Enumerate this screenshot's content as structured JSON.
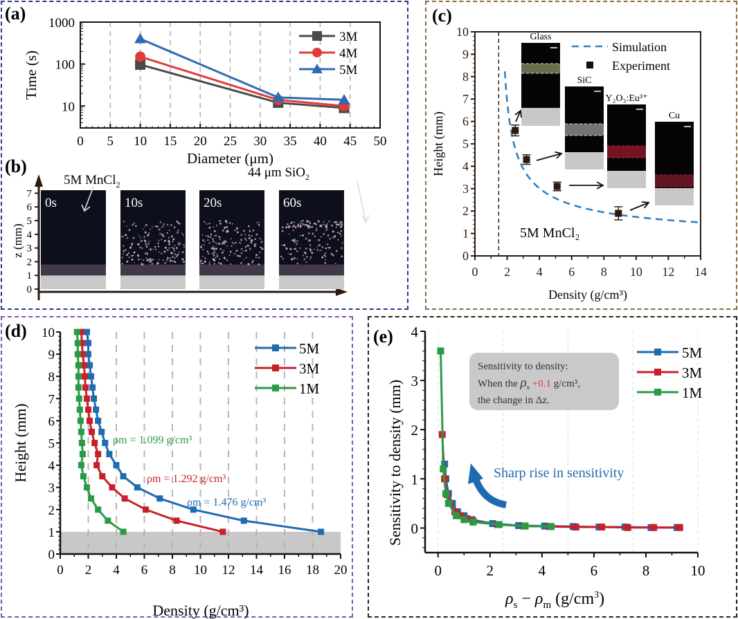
{
  "figure": {
    "panels": {
      "a": {
        "label": "(a)"
      },
      "b": {
        "label": "(b)"
      },
      "c": {
        "label": "(c)"
      },
      "d": {
        "label": "(d)"
      },
      "e": {
        "label": "(e)"
      }
    }
  },
  "chart_data": [
    {
      "id": "a",
      "type": "line",
      "title": "",
      "xlabel": "Diameter (μm)",
      "ylabel": "Time (s)",
      "xlim": [
        0,
        50
      ],
      "ylim": [
        3,
        1000
      ],
      "yscale": "log",
      "xticks": [
        "0",
        "5",
        "10",
        "15",
        "20",
        "25",
        "30",
        "35",
        "40",
        "45",
        "50"
      ],
      "yticks": [
        "10",
        "100",
        "1000"
      ],
      "grid": "vertical dashed",
      "legend_position": "top-right",
      "x": [
        10,
        33,
        44
      ],
      "series": [
        {
          "name": "3M",
          "marker": "square",
          "color": "#4a4a4a",
          "values": [
            97,
            12,
            9
          ]
        },
        {
          "name": "4M",
          "marker": "circle",
          "color": "#e03c3c",
          "values": [
            150,
            14,
            10
          ]
        },
        {
          "name": "5M",
          "marker": "triangle",
          "color": "#2f6bb5",
          "values": [
            400,
            16,
            14
          ]
        }
      ]
    },
    {
      "id": "b",
      "type": "image-sequence",
      "ylabel": "z (mm)",
      "yticks": [
        "0",
        "1",
        "2",
        "3",
        "4",
        "5",
        "6",
        "7"
      ],
      "annotations": {
        "left": "5M MnCl",
        "left_sub": "2",
        "right": "44 μm SiO",
        "right_sub": "2"
      },
      "frames": [
        {
          "time": "0s",
          "particle_top_mm": 1.9
        },
        {
          "time": "10s",
          "particle_top_mm": 5.0
        },
        {
          "time": "20s",
          "particle_top_mm": 5.0
        },
        {
          "time": "60s",
          "particle_top_mm": 5.0
        }
      ],
      "floor_mm": 1
    },
    {
      "id": "c",
      "type": "scatter",
      "xlabel": "Density (g/cm³)",
      "ylabel": "Height (mm)",
      "xlim": [
        0,
        14
      ],
      "ylim": [
        0,
        10
      ],
      "xticks": [
        "0",
        "2",
        "4",
        "6",
        "8",
        "10",
        "12",
        "14"
      ],
      "yticks": [
        "0",
        "1",
        "2",
        "3",
        "4",
        "5",
        "6",
        "7",
        "8",
        "9",
        "10"
      ],
      "legend_position": "top-right",
      "legend": [
        "Simulation",
        "Experiment"
      ],
      "vline_x": 1.476,
      "annotation": "5M MnCl₂",
      "simulation": {
        "name": "Simulation",
        "color": "#2f7fc0",
        "rho_m": 1.476
      },
      "experiment": {
        "name": "Experiment",
        "color": "#222222",
        "points": [
          {
            "x": 2.5,
            "y": 5.6,
            "err": 0.15
          },
          {
            "x": 3.2,
            "y": 4.3,
            "err": 0.12
          },
          {
            "x": 5.1,
            "y": 3.1,
            "err": 0.1
          },
          {
            "x": 8.9,
            "y": 1.9,
            "err": 0.2
          }
        ]
      },
      "insets": [
        {
          "label": "Glass",
          "band_color": "#b8c98a"
        },
        {
          "label": "SiC",
          "band_color": "#cfcfcf"
        },
        {
          "label": "Y₂O₃:Eu³⁺",
          "band_color": "#d0203a"
        },
        {
          "label": "Cu",
          "band_color": "#b0203a"
        }
      ]
    },
    {
      "id": "d",
      "type": "line",
      "xlabel": "Density (g/cm³)",
      "ylabel": "Height (mm)",
      "xlim": [
        0,
        20
      ],
      "ylim": [
        0,
        10
      ],
      "xticks": [
        "0",
        "2",
        "4",
        "6",
        "8",
        "10",
        "12",
        "14",
        "16",
        "18",
        "20"
      ],
      "yticks": [
        "0",
        "1",
        "2",
        "3",
        "4",
        "5",
        "6",
        "7",
        "8",
        "9",
        "10"
      ],
      "grid": "vertical dashed",
      "legend_position": "top-right",
      "shaded_region_y": [
        0,
        1
      ],
      "y": [
        10,
        9.5,
        9,
        8.5,
        8,
        7.5,
        7,
        6.5,
        6,
        5.5,
        5,
        4.5,
        4,
        3.5,
        3,
        2.5,
        2,
        1.5,
        1
      ],
      "series": [
        {
          "name": "5M",
          "color": "#1f6bb0",
          "annotation": "ρm = 1.476 g/cm³",
          "values": [
            1.9,
            2.0,
            2.0,
            2.1,
            2.2,
            2.3,
            2.4,
            2.55,
            2.7,
            2.95,
            3.2,
            3.5,
            4.0,
            4.5,
            5.5,
            7.1,
            9.5,
            13.1,
            18.6
          ]
        },
        {
          "name": "3M",
          "color": "#c8202a",
          "annotation": "ρm = 1.292 g/cm³",
          "values": [
            1.5,
            1.55,
            1.6,
            1.7,
            1.75,
            1.8,
            1.9,
            2.0,
            2.1,
            2.25,
            2.45,
            2.7,
            2.6,
            3.0,
            3.7,
            4.6,
            6.1,
            8.3,
            11.6
          ]
        },
        {
          "name": "1M",
          "color": "#2a9a45",
          "annotation": "ρm = 1.099 g/cm³",
          "values": [
            1.2,
            1.25,
            1.25,
            1.3,
            1.3,
            1.3,
            1.35,
            1.4,
            1.45,
            1.5,
            1.55,
            1.6,
            1.5,
            1.65,
            1.9,
            2.2,
            2.7,
            3.4,
            4.5
          ]
        }
      ]
    },
    {
      "id": "e",
      "type": "line",
      "xlabel": "ρs − ρm (g/cm³)",
      "ylabel": "Sensitivity to density (mm)",
      "xlim": [
        -0.5,
        10
      ],
      "ylim": [
        -0.5,
        4
      ],
      "xticks": [
        "0",
        "2",
        "4",
        "6",
        "8",
        "10"
      ],
      "yticks": [
        "0",
        "1",
        "2",
        "3",
        "4"
      ],
      "grid": "vertical dashed light",
      "legend_position": "top-right",
      "callout": {
        "line1": "Sensitivity to density:",
        "line2_pre": "When the",
        "line2_sym": "ρ",
        "line2_sub": "s",
        "line2_delta": "+0.1",
        "line2_post": "g/cm³,",
        "line3": "the change in Δz."
      },
      "arrow_annotation": "Sharp rise in sensitivity",
      "series": [
        {
          "name": "5M",
          "color": "#1f6bb0",
          "x": [
            0.25,
            0.3,
            0.4,
            0.55,
            0.75,
            1.0,
            1.3,
            2.1,
            3.1,
            4.1,
            5.2,
            6.2,
            7.2,
            8.2,
            9.2
          ],
          "values": [
            1.3,
            1.0,
            0.7,
            0.5,
            0.33,
            0.25,
            0.17,
            0.09,
            0.05,
            0.04,
            0.03,
            0.02,
            0.02,
            0.01,
            0.01
          ]
        },
        {
          "name": "3M",
          "color": "#c8202a",
          "x": [
            0.16,
            0.25,
            0.35,
            0.45,
            0.65,
            0.85,
            1.1,
            1.35,
            2.3,
            3.3,
            4.3,
            5.3,
            6.3,
            7.3,
            8.3,
            9.3
          ],
          "values": [
            1.9,
            1.0,
            0.68,
            0.5,
            0.33,
            0.25,
            0.19,
            0.14,
            0.07,
            0.04,
            0.03,
            0.02,
            0.02,
            0.01,
            0.01,
            0.01
          ]
        },
        {
          "name": "1M",
          "color": "#2a9a45",
          "x": [
            0.1,
            0.2,
            0.3,
            0.4,
            0.7,
            1.0,
            1.35,
            2.35,
            3.35,
            4.35
          ],
          "values": [
            3.6,
            1.2,
            0.7,
            0.5,
            0.25,
            0.17,
            0.12,
            0.07,
            0.04,
            0.03
          ]
        }
      ]
    }
  ]
}
